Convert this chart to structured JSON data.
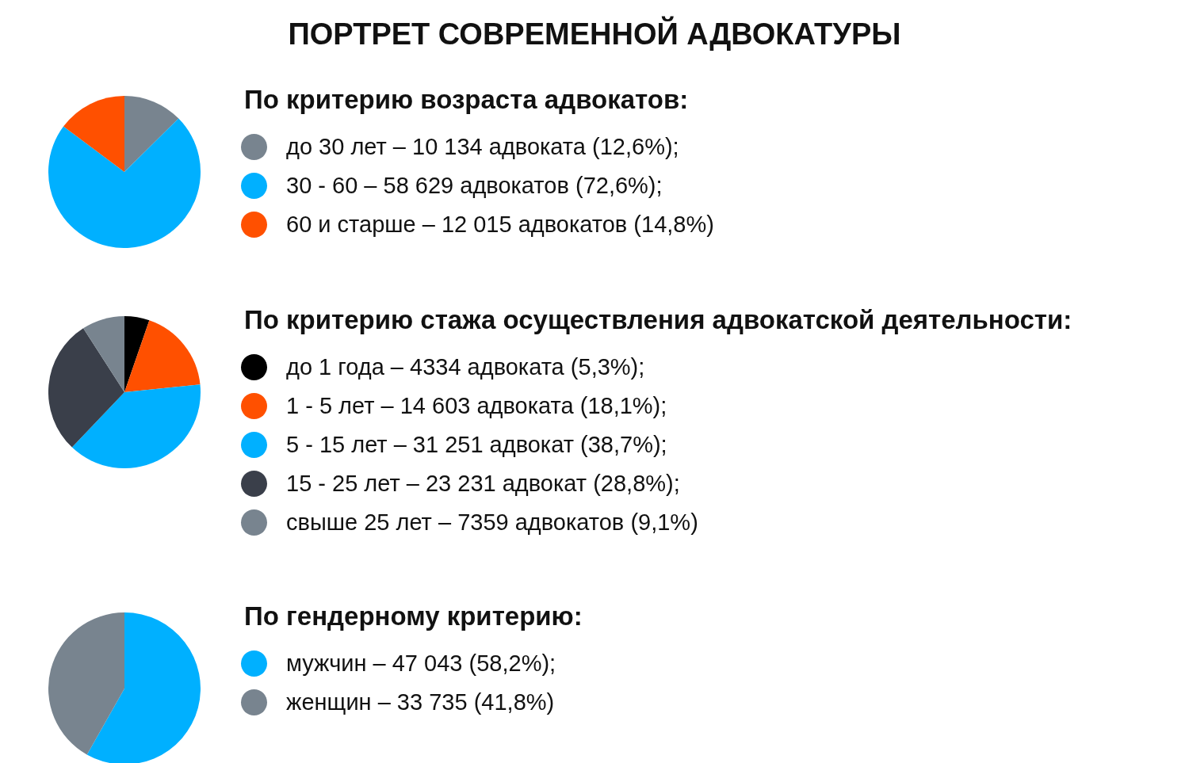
{
  "chart_data": [
    {
      "type": "pie",
      "title": "ПОРТРЕТ СОВРЕМЕННОЙ АДВОКАТУРЫ",
      "subtitle": "По критерию возраста адвокатов:",
      "categories": [
        "до 30 лет – 10 134 адвоката",
        "30 - 60 – 58 629 адвокатов",
        "60 и старше – 12 015 адвокатов"
      ],
      "values": [
        12.6,
        72.6,
        14.8
      ],
      "value_labels": [
        "(12,6%);",
        "(72,6%);",
        "(14,8%)"
      ],
      "colors": [
        "#78848f",
        "#00b0ff",
        "#ff5000"
      ],
      "legend": "right"
    },
    {
      "type": "pie",
      "title": "По критерию стажа осуществления адвокатской деятельности:",
      "categories": [
        "до 1 года – 4334 адвоката",
        "1 - 5 лет – 14 603 адвоката",
        "5 - 15 лет – 31 251 адвокат",
        "15 - 25 лет – 23 231 адвокат",
        "свыше 25 лет – 7359 адвокатов"
      ],
      "values": [
        5.3,
        18.1,
        38.7,
        28.8,
        9.1
      ],
      "value_labels": [
        "(5,3%);",
        "(18,1%);",
        "(38,7%);",
        "(28,8%);",
        "(9,1%)"
      ],
      "colors": [
        "#000000",
        "#ff5000",
        "#00b0ff",
        "#3a3f4a",
        "#78848f"
      ],
      "legend": "right"
    },
    {
      "type": "pie",
      "title": "По гендерному критерию:",
      "categories": [
        "мужчин – 47 043",
        "женщин – 33 735"
      ],
      "values": [
        58.2,
        41.8
      ],
      "value_labels": [
        "(58,2%);",
        "(41,8%)"
      ],
      "colors": [
        "#00b0ff",
        "#78848f"
      ],
      "legend": "right"
    }
  ]
}
